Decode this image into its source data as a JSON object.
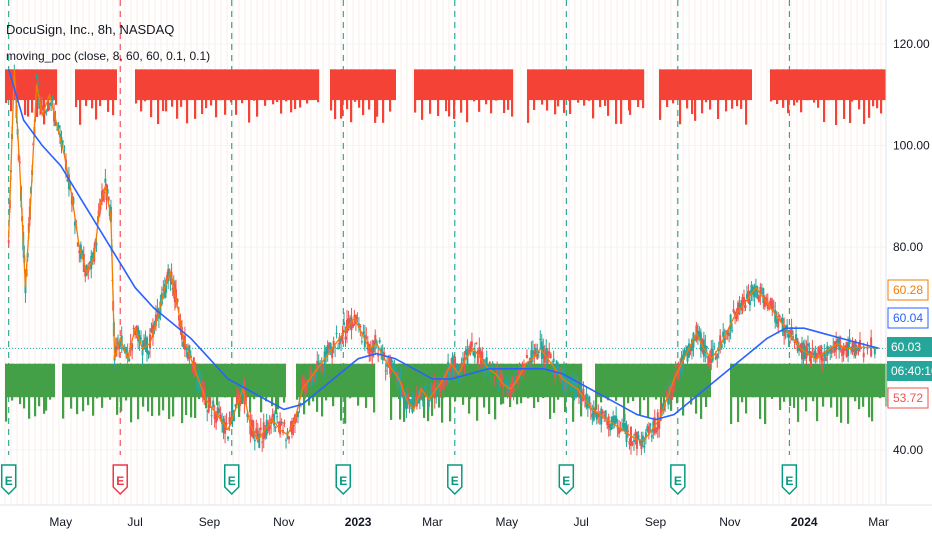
{
  "header": {
    "title": "DocuSign, Inc., 8h, NASDAQ",
    "indicator": "moving_poc (close, 8, 60, 60, 0.1, 0.1)"
  },
  "colors": {
    "red_band": "#f44336",
    "green_band": "#43a047",
    "price_line": "#f57c00",
    "moving_avg": "#2962ff",
    "candle_up": "#26a69a",
    "candle_down": "#ef5350",
    "earnings_green": "#089981",
    "earnings_red": "#f23645",
    "current_badge": "#26a69a"
  },
  "chart_data": {
    "type": "line",
    "title": "DocuSign, Inc., 8h, NASDAQ",
    "xlabel": "",
    "ylabel": "",
    "ylim": [
      35,
      125
    ],
    "y_ticks": [
      "120.00",
      "100.00",
      "80.00",
      "60.00",
      "40.00"
    ],
    "x_ticks": [
      {
        "label": "May",
        "month_index": 4,
        "bold": false
      },
      {
        "label": "Jul",
        "month_index": 6,
        "bold": false
      },
      {
        "label": "Sep",
        "month_index": 8,
        "bold": false
      },
      {
        "label": "Nov",
        "month_index": 10,
        "bold": false
      },
      {
        "label": "2023",
        "month_index": 12,
        "bold": true
      },
      {
        "label": "Mar",
        "month_index": 14,
        "bold": false
      },
      {
        "label": "May",
        "month_index": 16,
        "bold": false
      },
      {
        "label": "Jul",
        "month_index": 18,
        "bold": false
      },
      {
        "label": "Sep",
        "month_index": 20,
        "bold": false
      },
      {
        "label": "Nov",
        "month_index": 22,
        "bold": false
      },
      {
        "label": "2024",
        "month_index": 24,
        "bold": true
      },
      {
        "label": "Mar",
        "month_index": 26,
        "bold": false
      }
    ],
    "x_range": [
      2.5,
      26.2
    ],
    "series": [
      {
        "name": "close",
        "points": [
          [
            2.6,
            82
          ],
          [
            2.75,
            115
          ],
          [
            2.9,
            95
          ],
          [
            3.05,
            72
          ],
          [
            3.2,
            90
          ],
          [
            3.35,
            112
          ],
          [
            3.5,
            106
          ],
          [
            3.7,
            110
          ],
          [
            3.9,
            104
          ],
          [
            4.1,
            98
          ],
          [
            4.3,
            90
          ],
          [
            4.5,
            80
          ],
          [
            4.7,
            75
          ],
          [
            4.9,
            78
          ],
          [
            5.05,
            88
          ],
          [
            5.2,
            92
          ],
          [
            5.35,
            86
          ],
          [
            5.45,
            58
          ],
          [
            5.6,
            62
          ],
          [
            5.8,
            58
          ],
          [
            6.0,
            64
          ],
          [
            6.2,
            60
          ],
          [
            6.4,
            61
          ],
          [
            6.6,
            66
          ],
          [
            6.8,
            72
          ],
          [
            6.95,
            75
          ],
          [
            7.1,
            70
          ],
          [
            7.3,
            62
          ],
          [
            7.5,
            58
          ],
          [
            7.7,
            54
          ],
          [
            7.9,
            50
          ],
          [
            8.1,
            48
          ],
          [
            8.3,
            46
          ],
          [
            8.5,
            44
          ],
          [
            8.7,
            48
          ],
          [
            8.9,
            52
          ],
          [
            9.1,
            45
          ],
          [
            9.3,
            42
          ],
          [
            9.5,
            44
          ],
          [
            9.7,
            46
          ],
          [
            9.9,
            44
          ],
          [
            10.1,
            43
          ],
          [
            10.3,
            46
          ],
          [
            10.5,
            52
          ],
          [
            10.7,
            54
          ],
          [
            10.9,
            56
          ],
          [
            11.1,
            58
          ],
          [
            11.3,
            60
          ],
          [
            11.5,
            62
          ],
          [
            11.7,
            64
          ],
          [
            11.9,
            66
          ],
          [
            12.1,
            63
          ],
          [
            12.3,
            60
          ],
          [
            12.5,
            61
          ],
          [
            12.7,
            58
          ],
          [
            12.9,
            56
          ],
          [
            13.1,
            54
          ],
          [
            13.3,
            50
          ],
          [
            13.5,
            48
          ],
          [
            13.7,
            52
          ],
          [
            13.9,
            50
          ],
          [
            14.1,
            52
          ],
          [
            14.3,
            54
          ],
          [
            14.5,
            57
          ],
          [
            14.7,
            55
          ],
          [
            14.9,
            58
          ],
          [
            15.1,
            60
          ],
          [
            15.3,
            58
          ],
          [
            15.5,
            56
          ],
          [
            15.7,
            55
          ],
          [
            15.9,
            53
          ],
          [
            16.1,
            52
          ],
          [
            16.3,
            54
          ],
          [
            16.5,
            57
          ],
          [
            16.7,
            58
          ],
          [
            16.9,
            60
          ],
          [
            17.1,
            58
          ],
          [
            17.3,
            56
          ],
          [
            17.5,
            54
          ],
          [
            17.7,
            53
          ],
          [
            17.9,
            52
          ],
          [
            18.1,
            50
          ],
          [
            18.3,
            48
          ],
          [
            18.5,
            47
          ],
          [
            18.7,
            46
          ],
          [
            18.9,
            45
          ],
          [
            19.1,
            44
          ],
          [
            19.3,
            43
          ],
          [
            19.5,
            42
          ],
          [
            19.7,
            42
          ],
          [
            19.9,
            44
          ],
          [
            20.1,
            46
          ],
          [
            20.3,
            50
          ],
          [
            20.5,
            54
          ],
          [
            20.7,
            57
          ],
          [
            20.9,
            60
          ],
          [
            21.1,
            63
          ],
          [
            21.3,
            60
          ],
          [
            21.5,
            58
          ],
          [
            21.7,
            60
          ],
          [
            21.9,
            63
          ],
          [
            22.1,
            66
          ],
          [
            22.3,
            68
          ],
          [
            22.5,
            70
          ],
          [
            22.7,
            72
          ],
          [
            22.9,
            70
          ],
          [
            23.1,
            68
          ],
          [
            23.3,
            66
          ],
          [
            23.5,
            64
          ],
          [
            23.7,
            62
          ],
          [
            23.9,
            60
          ],
          [
            24.1,
            59
          ],
          [
            24.3,
            58
          ],
          [
            24.5,
            59
          ],
          [
            24.7,
            60
          ],
          [
            24.9,
            61
          ],
          [
            25.1,
            60
          ],
          [
            25.3,
            60
          ],
          [
            25.5,
            60.3
          ],
          [
            26.0,
            60.1
          ]
        ]
      },
      {
        "name": "moving average",
        "points": [
          [
            2.6,
            115
          ],
          [
            3.0,
            105
          ],
          [
            3.5,
            100
          ],
          [
            4.0,
            96
          ],
          [
            4.5,
            90
          ],
          [
            5.0,
            84
          ],
          [
            5.5,
            78
          ],
          [
            6.0,
            72
          ],
          [
            6.5,
            68
          ],
          [
            7.0,
            65
          ],
          [
            7.5,
            62
          ],
          [
            8.0,
            58
          ],
          [
            8.5,
            54
          ],
          [
            9.0,
            52
          ],
          [
            9.5,
            50
          ],
          [
            10.0,
            48
          ],
          [
            10.5,
            49
          ],
          [
            11.0,
            52
          ],
          [
            11.5,
            55
          ],
          [
            12.0,
            58
          ],
          [
            12.5,
            59
          ],
          [
            13.0,
            58
          ],
          [
            13.5,
            56
          ],
          [
            14.0,
            54
          ],
          [
            14.5,
            54
          ],
          [
            15.0,
            55
          ],
          [
            15.5,
            56
          ],
          [
            16.0,
            56
          ],
          [
            16.5,
            56
          ],
          [
            17.0,
            56
          ],
          [
            17.5,
            55
          ],
          [
            18.0,
            53
          ],
          [
            18.5,
            51
          ],
          [
            19.0,
            49
          ],
          [
            19.5,
            47
          ],
          [
            20.0,
            46
          ],
          [
            20.5,
            47
          ],
          [
            21.0,
            50
          ],
          [
            21.5,
            53
          ],
          [
            22.0,
            56
          ],
          [
            22.5,
            59
          ],
          [
            23.0,
            62
          ],
          [
            23.5,
            64
          ],
          [
            24.0,
            64
          ],
          [
            24.5,
            63
          ],
          [
            25.0,
            62
          ],
          [
            25.5,
            61
          ],
          [
            26.0,
            60.04
          ]
        ]
      }
    ],
    "earnings_markers": [
      {
        "month_index": 2.6,
        "color": "green",
        "label": "E"
      },
      {
        "month_index": 5.6,
        "color": "red",
        "label": "E"
      },
      {
        "month_index": 8.6,
        "color": "green",
        "label": "E"
      },
      {
        "month_index": 11.6,
        "color": "green",
        "label": "E"
      },
      {
        "month_index": 14.6,
        "color": "green",
        "label": "E"
      },
      {
        "month_index": 17.6,
        "color": "green",
        "label": "E"
      },
      {
        "month_index": 20.6,
        "color": "green",
        "label": "E"
      },
      {
        "month_index": 23.6,
        "color": "green",
        "label": "E"
      }
    ],
    "price_labels": [
      {
        "text": "60.28",
        "value": 60.28,
        "color": "#f57c00",
        "style": "outline"
      },
      {
        "text": "60.04",
        "value": 60.04,
        "color": "#2962ff",
        "style": "outline"
      },
      {
        "text": "60.03",
        "value": 60.03,
        "color": "#26a69a",
        "style": "filled"
      },
      {
        "text": "06:40:10",
        "value": 56.5,
        "color": "#26a69a",
        "style": "filled"
      },
      {
        "text": "53.72",
        "value": 53.72,
        "color": "#ef5350",
        "style": "outline"
      }
    ],
    "red_band_range": [
      104,
      115
    ],
    "green_band_range": [
      45,
      57
    ],
    "grid": true,
    "legend": "none"
  }
}
